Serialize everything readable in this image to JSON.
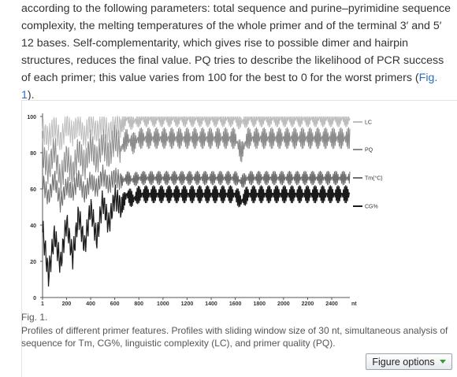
{
  "article": {
    "paragraph_before_link": "according to the following parameters: total sequence and purine–pyrimidine sequence complexity, the melting temperatures of the whole primer and of the terminal 3′ and 5′ 12 bases. Self-complementarity, which gives rise to possible dimer and hairpin structures, reduces the final value. PQ tries to describe the likelihood of PCR success of each primer; this value varies from 100 for the best to 0 for the worst primers (",
    "fig_link": "Fig. 1",
    "paragraph_after_link": ")."
  },
  "figure": {
    "label": "Fig. 1.",
    "caption": "Profiles of different primer features. Profiles with sliding window size of 30 nt, simultaneous analysis of sequence for Tm, CG%, linguistic complexity (LC), and primer quality (PQ).",
    "options_button": "Figure options",
    "options_icon": "chevron-down-icon"
  },
  "chart_data": {
    "type": "line",
    "title": "",
    "xlabel": "nt",
    "ylabel": "",
    "xlim": [
      1,
      2550
    ],
    "ylim": [
      0,
      100
    ],
    "x_ticks": [
      "1",
      "200",
      "400",
      "600",
      "800",
      "1000",
      "1200",
      "1400",
      "1600",
      "1800",
      "2000",
      "2200",
      "2400"
    ],
    "y_ticks": [
      "0",
      "20",
      "40",
      "60",
      "80",
      "100"
    ],
    "grid": false,
    "legend_position": "right",
    "series": [
      {
        "name": "LC",
        "color": "#bdbdbd",
        "x": [
          1,
          50,
          100,
          150,
          200,
          250,
          300,
          350,
          400,
          450,
          500,
          550,
          600,
          650,
          700,
          750,
          800,
          900,
          1000,
          1100,
          1200,
          1300,
          1400,
          1500,
          1600,
          1650,
          1700,
          1800,
          1900,
          2000,
          2100,
          2200,
          2300,
          2400,
          2550
        ],
        "y": [
          92,
          88,
          95,
          86,
          96,
          90,
          97,
          88,
          98,
          91,
          97,
          90,
          96,
          95,
          99,
          97,
          99,
          99,
          99,
          99,
          99,
          99,
          99,
          99,
          99,
          97,
          99,
          99,
          99,
          99,
          99,
          99,
          99,
          99,
          99
        ]
      },
      {
        "name": "PQ",
        "color": "#8c8c8c",
        "x": [
          1,
          50,
          100,
          150,
          200,
          250,
          300,
          350,
          400,
          450,
          500,
          550,
          600,
          650,
          700,
          750,
          800,
          900,
          1000,
          1100,
          1200,
          1300,
          1400,
          1500,
          1600,
          1650,
          1700,
          1800,
          1900,
          2000,
          2100,
          2200,
          2300,
          2400,
          2550
        ],
        "y": [
          80,
          70,
          83,
          64,
          78,
          68,
          82,
          72,
          85,
          75,
          86,
          78,
          88,
          82,
          88,
          85,
          88,
          88,
          88,
          88,
          88,
          88,
          88,
          88,
          88,
          80,
          88,
          88,
          88,
          88,
          88,
          88,
          88,
          88,
          88
        ]
      },
      {
        "name": "Tm(°C)",
        "color": "#6e6e6e",
        "x": [
          1,
          50,
          100,
          150,
          200,
          250,
          300,
          350,
          400,
          450,
          500,
          550,
          600,
          650,
          700,
          750,
          800,
          900,
          1000,
          1100,
          1200,
          1300,
          1400,
          1500,
          1600,
          1650,
          1700,
          1800,
          1900,
          2000,
          2100,
          2200,
          2300,
          2400,
          2550
        ],
        "y": [
          64,
          55,
          66,
          52,
          62,
          58,
          66,
          57,
          65,
          60,
          68,
          62,
          67,
          64,
          66,
          65,
          66,
          66,
          66,
          66,
          66,
          66,
          66,
          66,
          66,
          64,
          66,
          66,
          66,
          66,
          66,
          66,
          66,
          66,
          66
        ]
      },
      {
        "name": "CG%",
        "color": "#1a1a1a",
        "x": [
          1,
          50,
          100,
          150,
          200,
          250,
          300,
          350,
          400,
          450,
          500,
          550,
          600,
          650,
          700,
          750,
          800,
          900,
          1000,
          1100,
          1200,
          1300,
          1400,
          1500,
          1600,
          1650,
          1700,
          1800,
          1900,
          2000,
          2100,
          2200,
          2300,
          2400,
          2550
        ],
        "y": [
          38,
          12,
          35,
          18,
          42,
          22,
          46,
          28,
          50,
          32,
          54,
          40,
          56,
          50,
          57,
          54,
          57,
          57,
          57,
          57,
          57,
          57,
          57,
          57,
          57,
          53,
          57,
          57,
          57,
          57,
          57,
          57,
          57,
          57,
          57
        ]
      }
    ]
  }
}
